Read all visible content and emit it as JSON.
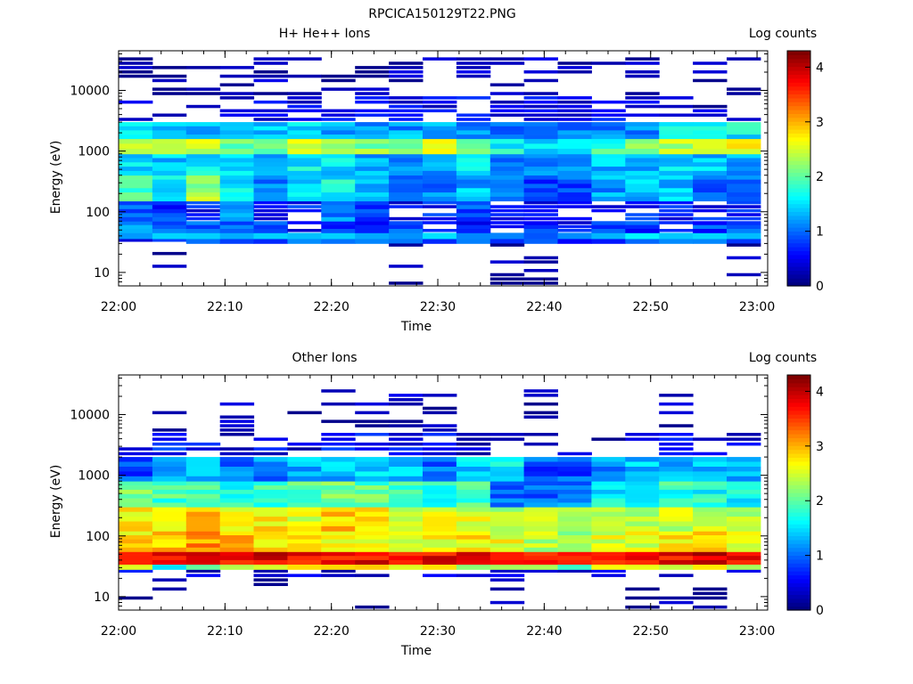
{
  "figure_title": "RPCICA150129T22.PNG",
  "chart_data": [
    {
      "type": "heatmap",
      "title": "H+ He++ Ions",
      "xlabel": "Time",
      "ylabel": "Energy (eV)",
      "x_ticks": [
        "22:00",
        "22:10",
        "22:20",
        "22:30",
        "22:40",
        "22:50",
        "23:00"
      ],
      "x_range": [
        "22:00",
        "23:01"
      ],
      "y_scale": "log",
      "y_range": [
        6,
        45000
      ],
      "y_ticks": [
        {
          "value": 10,
          "label": "10"
        },
        {
          "value": 100,
          "label": "100"
        },
        {
          "value": 1000,
          "label": "1000"
        },
        {
          "value": 10000,
          "label": "10000"
        }
      ],
      "colorbar": {
        "label": "Log counts",
        "range": [
          0,
          4.3
        ],
        "ticks": [
          "0",
          "1",
          "2",
          "3",
          "4"
        ],
        "colormap": "jet"
      },
      "time_bins": 19,
      "bands": [
        {
          "e_min": 30,
          "e_max": 36,
          "level": [
            0.5,
            0.5,
            0.9,
            0.7,
            0.9,
            0.9,
            0.9,
            0.9,
            0.9,
            0.8,
            0.9,
            0.9,
            0.9,
            0.7,
            0.8,
            0.8,
            0.9,
            0.9,
            1.0
          ]
        },
        {
          "e_min": 36,
          "e_max": 45,
          "level": [
            1.2,
            1.3,
            1.5,
            1.4,
            1.5,
            1.1,
            1.2,
            1.3,
            1.2,
            1.3,
            1.3,
            1.3,
            1.0,
            1.2,
            1.3,
            1.3,
            1.4,
            1.3,
            1.5
          ]
        },
        {
          "e_min": 45,
          "e_max": 70,
          "level": [
            1.1,
            0.9,
            1.0,
            1.0,
            0.9,
            0.6,
            0.8,
            0.8,
            0.9,
            0.6,
            0.7,
            0.5,
            0.7,
            0.6,
            0.8,
            0.7,
            0.6,
            0.8,
            0.9
          ]
        },
        {
          "e_min": 70,
          "e_max": 150,
          "level": [
            0.9,
            0.8,
            0.6,
            1.1,
            0.5,
            0.6,
            1.1,
            0.9,
            0.5,
            0.6,
            0.8,
            0.6,
            0.6,
            0.6,
            0.6,
            0.6,
            0.6,
            0.6,
            0.6
          ]
        },
        {
          "e_min": 150,
          "e_max": 400,
          "level": [
            1.9,
            1.6,
            2.3,
            1.6,
            1.1,
            1.5,
            1.6,
            1.2,
            0.9,
            1.1,
            1.3,
            0.9,
            0.8,
            0.9,
            1.2,
            1.3,
            1.4,
            1.0,
            1.1
          ]
        },
        {
          "e_min": 400,
          "e_max": 900,
          "level": [
            1.5,
            1.4,
            1.6,
            1.5,
            1.4,
            1.6,
            1.5,
            1.2,
            1.2,
            1.3,
            1.5,
            1.1,
            1.0,
            1.1,
            1.3,
            1.3,
            1.5,
            1.4,
            1.2
          ]
        },
        {
          "e_min": 900,
          "e_max": 1600,
          "level": [
            2.4,
            2.3,
            2.4,
            2.1,
            2.2,
            2.4,
            2.2,
            2.2,
            2.3,
            2.8,
            2.0,
            1.7,
            1.6,
            1.7,
            1.8,
            2.1,
            2.4,
            2.6,
            2.6
          ]
        },
        {
          "e_min": 1600,
          "e_max": 3000,
          "level": [
            1.6,
            1.5,
            1.3,
            1.2,
            1.4,
            1.5,
            1.2,
            1.1,
            1.2,
            1.3,
            1.1,
            1.0,
            1.0,
            1.0,
            1.1,
            1.2,
            1.5,
            1.7,
            1.6
          ]
        },
        {
          "e_min": 3000,
          "e_max": 8000,
          "level": [
            0.4,
            0.3,
            0.3,
            0.4,
            0.5,
            0.4,
            0.5,
            0.4,
            0.5,
            0.4,
            0.5,
            0.5,
            0.5,
            0.4,
            0.5,
            0.4,
            0.3,
            0.3,
            0.3
          ]
        },
        {
          "e_min": 8000,
          "e_max": 35000,
          "level": [
            0.2,
            0.1,
            0.2,
            0.2,
            0.2,
            0.1,
            0.1,
            0.2,
            0.2,
            0.1,
            0.2,
            0.2,
            0.2,
            0.1,
            0.1,
            0.2,
            0.2,
            0.1,
            0.2
          ]
        },
        {
          "e_min": 6,
          "e_max": 30,
          "level": [
            0,
            0.1,
            0,
            0,
            0,
            0,
            0,
            0,
            0.1,
            0,
            0,
            0.1,
            0.1,
            0,
            0,
            0,
            0,
            0,
            0.1
          ]
        }
      ]
    },
    {
      "type": "heatmap",
      "title": "Other Ions",
      "xlabel": "Time",
      "ylabel": "Energy (eV)",
      "x_ticks": [
        "22:00",
        "22:10",
        "22:20",
        "22:30",
        "22:40",
        "22:50",
        "23:00"
      ],
      "x_range": [
        "22:00",
        "23:01"
      ],
      "y_scale": "log",
      "y_range": [
        6,
        45000
      ],
      "y_ticks": [
        {
          "value": 10,
          "label": "10"
        },
        {
          "value": 100,
          "label": "100"
        },
        {
          "value": 1000,
          "label": "1000"
        },
        {
          "value": 10000,
          "label": "10000"
        }
      ],
      "colorbar": {
        "label": "Log counts",
        "range": [
          0,
          4.3
        ],
        "ticks": [
          "0",
          "1",
          "2",
          "3",
          "4"
        ],
        "colormap": "jet"
      },
      "time_bins": 19,
      "bands": [
        {
          "e_min": 6,
          "e_max": 20,
          "level": [
            0.1,
            0.1,
            0,
            0,
            0.1,
            0,
            0,
            0.1,
            0,
            0,
            0,
            0.1,
            0,
            0,
            0,
            0.1,
            0.1,
            0.1,
            0
          ]
        },
        {
          "e_min": 20,
          "e_max": 28,
          "level": [
            0.6,
            0.3,
            0.3,
            0.3,
            0.3,
            0.3,
            0.3,
            0.4,
            0.3,
            0.3,
            0.3,
            0.3,
            0.3,
            0.3,
            0.3,
            0.3,
            0.3,
            0.3,
            0.3
          ]
        },
        {
          "e_min": 28,
          "e_max": 34,
          "level": [
            2.4,
            1.5,
            2.2,
            2.4,
            2.8,
            2.6,
            2.6,
            2.8,
            2.7,
            2.6,
            2.4,
            2.5,
            2.3,
            1.6,
            2.5,
            2.4,
            2.5,
            2.6,
            2.5
          ]
        },
        {
          "e_min": 34,
          "e_max": 55,
          "level": [
            3.9,
            3.8,
            4.2,
            3.7,
            3.9,
            3.8,
            3.8,
            3.8,
            3.8,
            3.8,
            3.9,
            3.7,
            3.8,
            3.8,
            3.7,
            3.8,
            3.8,
            3.9,
            3.8
          ]
        },
        {
          "e_min": 55,
          "e_max": 120,
          "level": [
            2.8,
            2.9,
            3.1,
            2.9,
            2.7,
            2.9,
            2.7,
            2.7,
            2.6,
            2.6,
            2.7,
            2.6,
            2.4,
            2.3,
            2.5,
            2.6,
            2.8,
            2.8,
            2.5
          ]
        },
        {
          "e_min": 120,
          "e_max": 300,
          "level": [
            2.8,
            2.6,
            2.9,
            2.6,
            2.7,
            2.6,
            2.9,
            2.8,
            2.6,
            2.6,
            2.5,
            2.4,
            2.3,
            2.3,
            2.4,
            2.3,
            2.5,
            2.5,
            2.4
          ]
        },
        {
          "e_min": 300,
          "e_max": 800,
          "level": [
            2.1,
            1.9,
            2.0,
            1.7,
            1.8,
            2.0,
            2.1,
            2.0,
            1.9,
            1.8,
            1.9,
            1.0,
            1.0,
            1.1,
            1.6,
            1.7,
            1.8,
            1.7,
            1.6
          ]
        },
        {
          "e_min": 800,
          "e_max": 2000,
          "level": [
            0.8,
            1.2,
            1.4,
            1.0,
            1.1,
            1.3,
            1.3,
            1.5,
            1.4,
            1.0,
            1.4,
            1.6,
            0.9,
            0.9,
            1.2,
            1.4,
            1.3,
            1.3,
            1.2
          ]
        },
        {
          "e_min": 2000,
          "e_max": 5000,
          "level": [
            0.5,
            0.6,
            0.5,
            0.4,
            0.5,
            0.4,
            0.6,
            0.5,
            0.5,
            0.6,
            0.4,
            0.3,
            0.3,
            0.2,
            0.2,
            0.4,
            0.5,
            0.5,
            0.4
          ]
        },
        {
          "e_min": 5000,
          "e_max": 26000,
          "level": [
            0,
            0.2,
            0,
            0.2,
            0,
            0.1,
            0.1,
            0.2,
            0.2,
            0.2,
            0,
            0,
            0.1,
            0,
            0,
            0,
            0.2,
            0,
            0
          ]
        }
      ]
    }
  ]
}
